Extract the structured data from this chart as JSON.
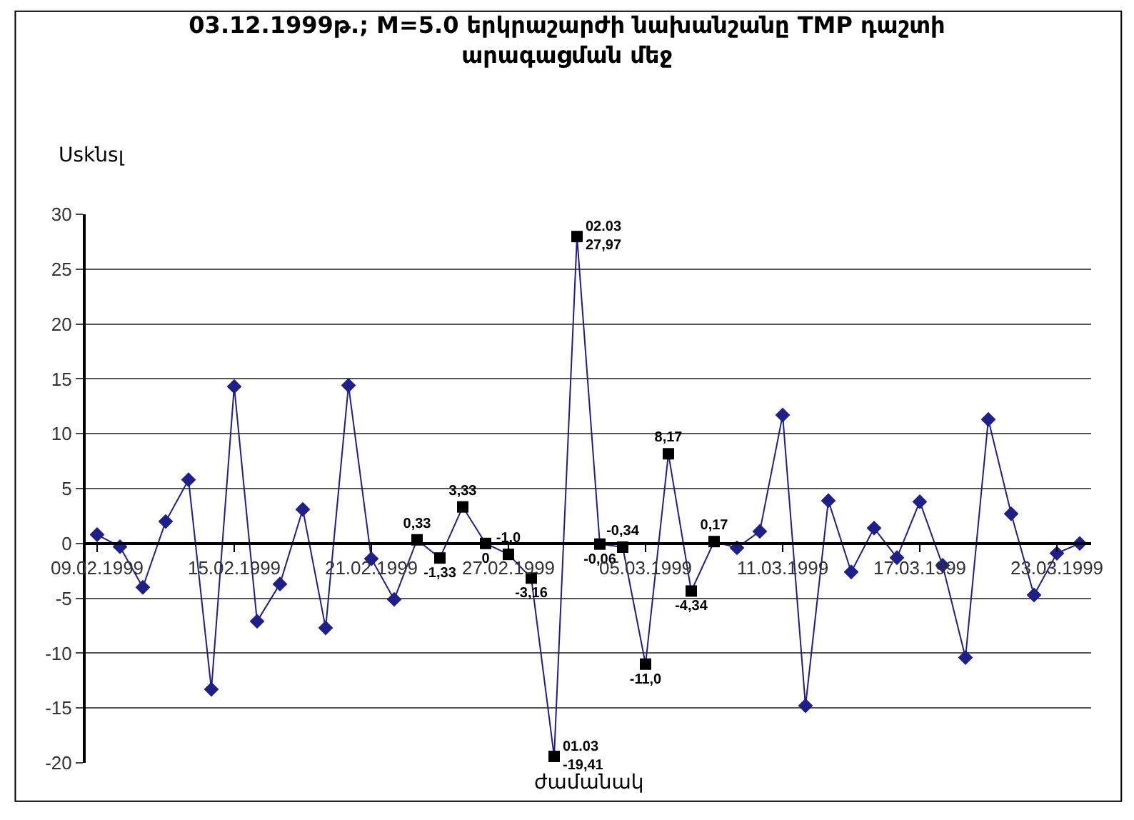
{
  "chart_data": {
    "type": "line",
    "title": "03.12.1999թ.; M=5.0 երկրաշարժի նախանշանը TMP դաշտի\nարագացման մեջ",
    "ylabel": "Uskնsլ",
    "xlabel": "ժամանակ",
    "categories": [
      "09.02.1999",
      null,
      null,
      null,
      null,
      null,
      "15.02.1999",
      null,
      null,
      null,
      null,
      null,
      "21.02.1999",
      null,
      null,
      null,
      null,
      null,
      "27.02.1999",
      null,
      null,
      null,
      null,
      null,
      "05.03.1999",
      null,
      null,
      null,
      null,
      null,
      "11.03.1999",
      null,
      null,
      null,
      null,
      null,
      "17.03.1999",
      null,
      null,
      null,
      null,
      null,
      "23.03.1999",
      null
    ],
    "series": [
      {
        "color": "#1f1f8a",
        "marker": "none",
        "values": [
          0.8,
          -0.3,
          -4.0,
          2.0,
          5.8,
          -13.3,
          14.3,
          -7.1,
          -3.7,
          3.1,
          -7.7,
          14.4,
          -1.4,
          -5.1,
          0.33,
          -1.33,
          3.33,
          0,
          -1.0,
          -3.16,
          -19.41,
          27.97,
          -0.06,
          -0.34,
          -11.0,
          8.17,
          -4.34,
          0.17,
          -0.4,
          1.1,
          11.7,
          -14.8,
          3.9,
          -2.6,
          1.4,
          -1.3,
          3.8,
          -2.0,
          -10.4,
          11.3,
          2.7,
          -4.7,
          -0.9,
          0.0
        ]
      },
      {
        "type": "scatter",
        "color": "#1f1f8a",
        "marker": "diamond",
        "values": [
          0.8,
          -0.3,
          -4.0,
          2.0,
          5.8,
          -13.3,
          14.3,
          -7.1,
          -3.7,
          3.1,
          -7.7,
          14.4,
          -1.4,
          -5.1,
          null,
          null,
          null,
          null,
          null,
          null,
          null,
          null,
          null,
          null,
          null,
          null,
          null,
          null,
          -0.4,
          1.1,
          11.7,
          -14.8,
          3.9,
          -2.6,
          1.4,
          -1.3,
          3.8,
          -2.0,
          -10.4,
          11.3,
          2.7,
          -4.7,
          -0.9,
          0.0
        ]
      },
      {
        "type": "scatter",
        "color": "#000000",
        "marker": "square",
        "values": [
          null,
          null,
          null,
          null,
          null,
          null,
          null,
          null,
          null,
          null,
          null,
          null,
          null,
          null,
          0.33,
          -1.33,
          3.33,
          0,
          -1.0,
          -3.16,
          -19.41,
          27.97,
          -0.06,
          -0.34,
          -11.0,
          8.17,
          -4.34,
          0.17,
          null,
          null,
          null,
          null,
          null,
          null,
          null,
          null,
          null,
          null,
          null,
          null,
          null,
          null,
          null,
          null
        ],
        "value_labels": [
          null,
          null,
          null,
          null,
          null,
          null,
          null,
          null,
          null,
          null,
          null,
          null,
          null,
          null,
          "0,33",
          "-1,33",
          "3,33",
          "0",
          "-1,0",
          "-3,16",
          "01.03\n-19,41",
          "02.03\n27,97",
          "-0,06",
          "-0,34",
          "-11,0",
          "8,17",
          "-4,34",
          "0,17",
          null,
          null,
          null,
          null,
          null,
          null,
          null,
          null,
          null,
          null,
          null,
          null,
          null,
          null,
          null,
          null
        ]
      }
    ],
    "ylim": [
      -20,
      30
    ],
    "yticks": [
      -20,
      -15,
      -10,
      -5,
      0,
      5,
      10,
      15,
      20,
      25,
      30
    ],
    "grid": "y"
  }
}
